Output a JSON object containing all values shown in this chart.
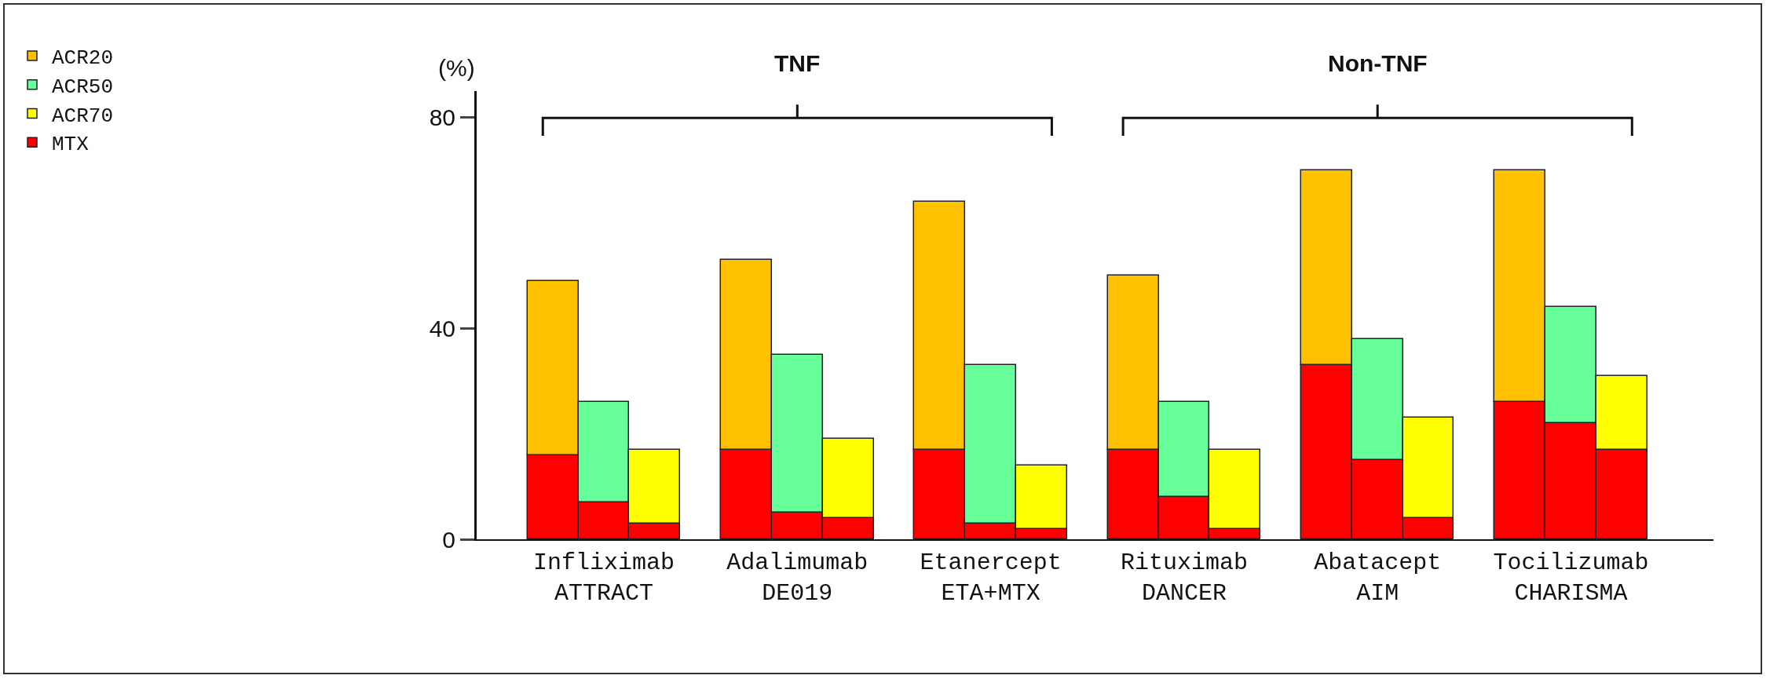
{
  "chart_data": {
    "type": "bar",
    "stacked": true,
    "ylabel": "(%)",
    "categories": [
      null,
      "Infliximab\nATTRACT",
      null,
      null,
      "Adalimumab\nDE019",
      null,
      null,
      "Etanercept\nETA+MTX",
      null,
      null,
      "Rituximab\nDANCER",
      null,
      null,
      "Abatacept\nAIM",
      null,
      null,
      "Tocilizumab\nCHARISMA",
      null
    ],
    "series": [
      {
        "name": "MTX",
        "color": "#ff0000",
        "values": [
          16,
          7,
          3,
          17,
          5,
          4,
          17,
          3,
          2,
          17,
          8,
          2,
          33,
          15,
          4,
          26,
          22,
          17
        ]
      },
      {
        "name": "ACR20",
        "color": "#ffc000",
        "values": [
          33,
          null,
          null,
          36,
          null,
          null,
          47,
          null,
          null,
          33,
          null,
          null,
          37,
          null,
          null,
          44,
          null,
          null
        ]
      },
      {
        "name": "ACR50",
        "color": "#66ff99",
        "values": [
          null,
          19,
          null,
          null,
          30,
          null,
          null,
          30,
          null,
          null,
          18,
          null,
          null,
          23,
          null,
          null,
          22,
          null
        ]
      },
      {
        "name": "ACR70",
        "color": "#ffff00",
        "values": [
          null,
          null,
          14,
          null,
          null,
          15,
          null,
          null,
          12,
          null,
          null,
          15,
          null,
          null,
          19,
          null,
          null,
          14
        ]
      }
    ],
    "ylim": [
      0,
      85
    ],
    "yticks": [
      0,
      40,
      80
    ],
    "grid": false,
    "legend": "top left",
    "annotations": [
      "TNF",
      "Non-TNF"
    ]
  }
}
